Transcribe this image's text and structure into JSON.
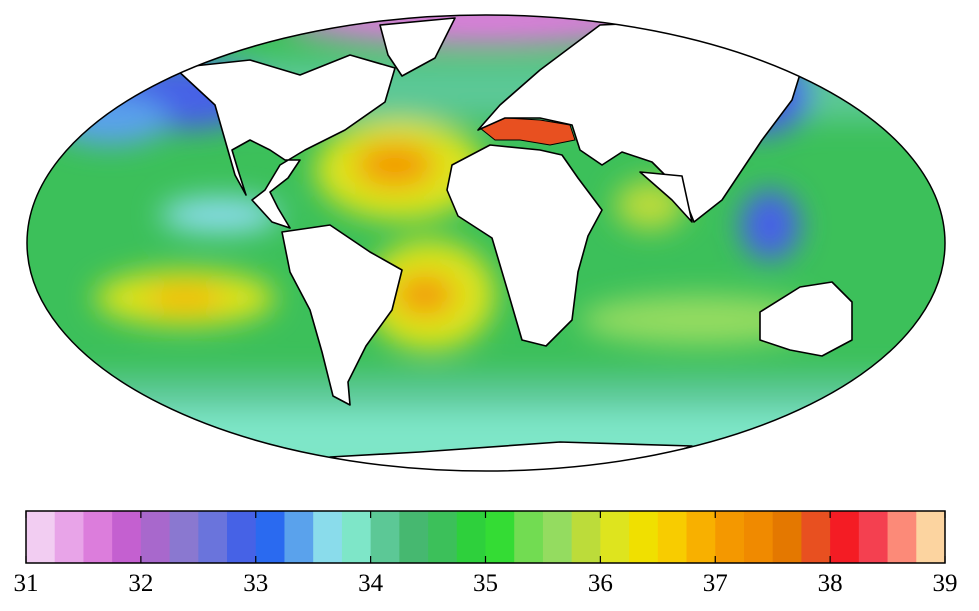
{
  "colorbar": {
    "xlim": [
      31,
      39
    ],
    "xticks": [
      31,
      32,
      33,
      34,
      35,
      36,
      37,
      38,
      39
    ],
    "colors": [
      "#f2cdf2",
      "#e8a4e8",
      "#dc7ddc",
      "#c460d0",
      "#a868cc",
      "#8a78d0",
      "#6a74dc",
      "#4662e6",
      "#2a6af0",
      "#5aa2ec",
      "#8adceb",
      "#7ee6c8",
      "#5cc896",
      "#46b870",
      "#3cc05a",
      "#2ed03c",
      "#34dc34",
      "#72dc52",
      "#94dc60",
      "#bcdc3a",
      "#dee41e",
      "#f0e000",
      "#f8cc00",
      "#f8b000",
      "#f49800",
      "#f08a00",
      "#e47800",
      "#e85020",
      "#f41c24",
      "#f44050",
      "#fc8a78",
      "#fcd4a0"
    ]
  }
}
